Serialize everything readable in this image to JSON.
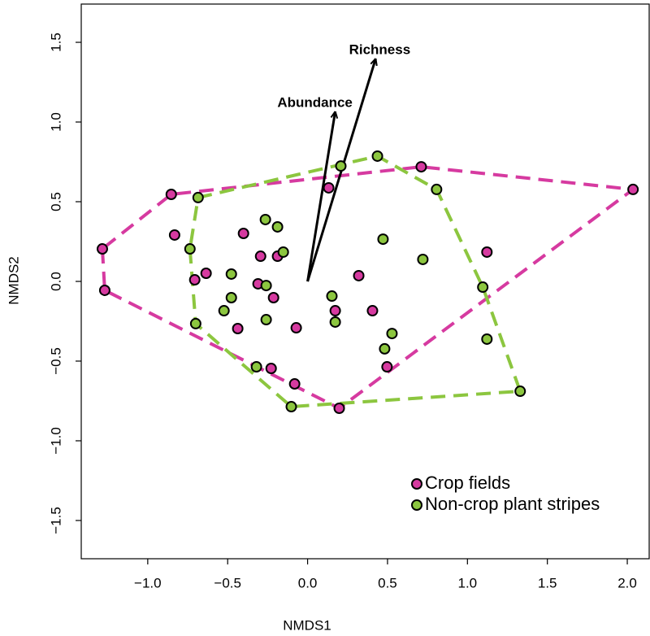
{
  "chart_data": {
    "type": "scatter",
    "xlabel": "NMDS1",
    "ylabel": "NMDS2",
    "xlim": [
      -1.416,
      2.137
    ],
    "ylim": [
      -1.74,
      1.74
    ],
    "xticks": [
      {
        "value": -1,
        "label": "−1.0"
      },
      {
        "value": -0.5,
        "label": "−0.5"
      },
      {
        "value": 0,
        "label": "0.0"
      },
      {
        "value": 0.5,
        "label": "0.5"
      },
      {
        "value": 1,
        "label": "1.0"
      },
      {
        "value": 1.5,
        "label": "1.5"
      },
      {
        "value": 2,
        "label": "2.0"
      }
    ],
    "yticks": [
      {
        "value": -1.5,
        "label": "−1.5"
      },
      {
        "value": -1,
        "label": "−1.0"
      },
      {
        "value": -0.5,
        "label": "−0.5"
      },
      {
        "value": 0,
        "label": "0.0"
      },
      {
        "value": 0.5,
        "label": "0.5"
      },
      {
        "value": 1,
        "label": "1.0"
      },
      {
        "value": 1.5,
        "label": "1.5"
      }
    ],
    "grid": false,
    "hull": true,
    "legend": "bottomright",
    "series": [
      {
        "name": "Crop fields",
        "color": "#d63aa0",
        "x": [
          -1.284,
          -1.269,
          -0.853,
          -0.832,
          -0.635,
          -0.706,
          -0.401,
          -0.294,
          -0.188,
          -0.31,
          -0.437,
          -0.213,
          -0.228,
          -0.071,
          -0.081,
          0.132,
          0.173,
          0.32,
          0.406,
          0.198,
          0.497,
          0.711,
          1.122,
          2.036
        ],
        "values": [
          0.204,
          -0.056,
          0.546,
          0.291,
          0.051,
          0.01,
          0.301,
          0.158,
          0.158,
          -0.015,
          -0.296,
          -0.102,
          -0.546,
          -0.291,
          -0.643,
          0.587,
          -0.184,
          0.036,
          -0.184,
          -0.796,
          -0.536,
          0.719,
          0.184,
          0.577
        ]
      },
      {
        "name": "Non-crop plant stripes",
        "color": "#8cc63f",
        "x": [
          -0.685,
          -0.736,
          -0.7,
          -0.264,
          -0.188,
          -0.152,
          -0.477,
          -0.477,
          -0.523,
          -0.259,
          -0.259,
          -0.32,
          -0.102,
          0.208,
          0.437,
          0.472,
          0.152,
          0.173,
          0.528,
          0.482,
          0.721,
          0.807,
          1.096,
          1.122,
          1.33
        ],
        "values": [
          0.526,
          0.204,
          -0.265,
          0.388,
          0.342,
          0.184,
          0.046,
          -0.102,
          -0.184,
          -0.026,
          -0.24,
          -0.536,
          -0.786,
          0.724,
          0.786,
          0.265,
          -0.092,
          -0.255,
          -0.327,
          -0.423,
          0.138,
          0.577,
          -0.036,
          -0.362,
          -0.689
        ]
      }
    ],
    "arrows": [
      {
        "label": "Abundance",
        "x": 0.173,
        "y": 1.066
      },
      {
        "label": "Richness",
        "x": 0.426,
        "y": 1.398
      }
    ]
  }
}
